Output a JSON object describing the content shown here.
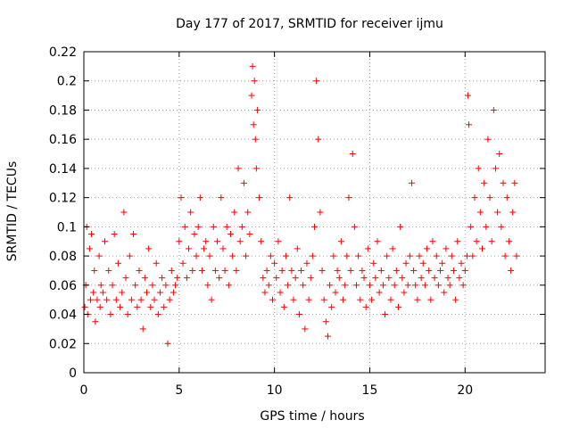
{
  "chart_data": {
    "type": "scatter",
    "title": "Day 177 of 2017, SRMTID for receiver ijmu",
    "xlabel": "GPS time / hours",
    "ylabel": "SRMTID / TECUs",
    "xlim": [
      0,
      24.2
    ],
    "ylim": [
      0,
      0.22
    ],
    "xticks": [
      0,
      5,
      10,
      15,
      20
    ],
    "yticks": [
      0,
      0.02,
      0.04,
      0.06,
      0.08,
      0.1,
      0.12,
      0.14,
      0.16,
      0.18,
      0.2,
      0.22
    ],
    "xtick_labels": [
      "0",
      "5",
      "10",
      "15",
      "20"
    ],
    "ytick_labels": [
      "0",
      "0.02",
      "0.04",
      "0.06",
      "0.08",
      "0.1",
      "0.12",
      "0.14",
      "0.16",
      "0.18",
      "0.2",
      "0.22"
    ],
    "grid": true,
    "marker": "plus",
    "color": "#ff0000",
    "series": [
      {
        "x": [
          0.05,
          0.1,
          0.15,
          0.2,
          0.3,
          0.35,
          0.4,
          0.5,
          0.55,
          0.6,
          0.7,
          0.8,
          0.85,
          0.9,
          1.0,
          1.1,
          1.2,
          1.3,
          1.4,
          1.5,
          1.6,
          1.7,
          1.8,
          1.9,
          2.0,
          2.1,
          2.2,
          2.3,
          2.4,
          2.5,
          2.6,
          2.7,
          2.8,
          2.9,
          3.0,
          3.1,
          3.2,
          3.3,
          3.4,
          3.5,
          3.6,
          3.7,
          3.8,
          3.9,
          4.0,
          4.1,
          4.2,
          4.3,
          4.4,
          4.5,
          4.6,
          4.7,
          4.8,
          4.9,
          5.0,
          5.1,
          5.2,
          5.3,
          5.4,
          5.5,
          5.6,
          5.7,
          5.8,
          5.9,
          6.0,
          6.1,
          6.2,
          6.3,
          6.4,
          6.5,
          6.6,
          6.7,
          6.8,
          6.9,
          7.0,
          7.1,
          7.2,
          7.3,
          7.4,
          7.5,
          7.6,
          7.7,
          7.8,
          7.9,
          8.0,
          8.1,
          8.2,
          8.3,
          8.4,
          8.5,
          8.6,
          8.7,
          8.8,
          8.85,
          8.9,
          8.95,
          9.0,
          9.05,
          9.1,
          9.2,
          9.3,
          9.4,
          9.5,
          9.6,
          9.7,
          9.8,
          9.9,
          10.0,
          10.1,
          10.2,
          10.3,
          10.4,
          10.5,
          10.6,
          10.7,
          10.8,
          10.9,
          11.0,
          11.1,
          11.2,
          11.3,
          11.4,
          11.5,
          11.6,
          11.7,
          11.8,
          11.9,
          12.0,
          12.1,
          12.2,
          12.3,
          12.4,
          12.5,
          12.6,
          12.7,
          12.8,
          12.9,
          13.0,
          13.1,
          13.2,
          13.3,
          13.4,
          13.5,
          13.6,
          13.7,
          13.8,
          13.9,
          14.0,
          14.1,
          14.2,
          14.3,
          14.4,
          14.5,
          14.6,
          14.7,
          14.8,
          14.9,
          15.0,
          15.1,
          15.2,
          15.3,
          15.4,
          15.5,
          15.6,
          15.7,
          15.8,
          15.9,
          16.0,
          16.1,
          16.2,
          16.3,
          16.4,
          16.5,
          16.6,
          16.7,
          16.8,
          16.9,
          17.0,
          17.1,
          17.2,
          17.3,
          17.4,
          17.5,
          17.6,
          17.7,
          17.8,
          17.9,
          18.0,
          18.1,
          18.2,
          18.3,
          18.4,
          18.5,
          18.6,
          18.7,
          18.8,
          18.9,
          19.0,
          19.1,
          19.2,
          19.3,
          19.4,
          19.5,
          19.6,
          19.7,
          19.8,
          19.9,
          20.0,
          20.1,
          20.15,
          20.2,
          20.3,
          20.4,
          20.5,
          20.6,
          20.7,
          20.8,
          20.9,
          21.0,
          21.1,
          21.2,
          21.3,
          21.4,
          21.5,
          21.6,
          21.7,
          21.8,
          21.9,
          22.0,
          22.1,
          22.2,
          22.3,
          22.4,
          22.5,
          22.6,
          22.7
        ],
        "y": [
          0.045,
          0.06,
          0.1,
          0.04,
          0.085,
          0.05,
          0.095,
          0.055,
          0.07,
          0.035,
          0.05,
          0.08,
          0.045,
          0.06,
          0.055,
          0.09,
          0.05,
          0.07,
          0.04,
          0.06,
          0.095,
          0.05,
          0.075,
          0.045,
          0.055,
          0.11,
          0.065,
          0.04,
          0.08,
          0.05,
          0.095,
          0.06,
          0.045,
          0.07,
          0.05,
          0.03,
          0.065,
          0.055,
          0.085,
          0.045,
          0.06,
          0.05,
          0.075,
          0.04,
          0.055,
          0.065,
          0.045,
          0.06,
          0.02,
          0.05,
          0.07,
          0.055,
          0.06,
          0.065,
          0.09,
          0.12,
          0.075,
          0.1,
          0.065,
          0.085,
          0.11,
          0.07,
          0.095,
          0.08,
          0.1,
          0.12,
          0.07,
          0.085,
          0.09,
          0.06,
          0.08,
          0.05,
          0.1,
          0.07,
          0.09,
          0.065,
          0.12,
          0.085,
          0.07,
          0.1,
          0.06,
          0.095,
          0.08,
          0.11,
          0.07,
          0.14,
          0.09,
          0.1,
          0.13,
          0.08,
          0.11,
          0.095,
          0.19,
          0.21,
          0.17,
          0.2,
          0.16,
          0.14,
          0.18,
          0.12,
          0.09,
          0.065,
          0.055,
          0.07,
          0.06,
          0.08,
          0.05,
          0.075,
          0.065,
          0.09,
          0.055,
          0.07,
          0.045,
          0.08,
          0.06,
          0.12,
          0.07,
          0.05,
          0.065,
          0.085,
          0.04,
          0.07,
          0.06,
          0.03,
          0.075,
          0.05,
          0.065,
          0.08,
          0.1,
          0.2,
          0.16,
          0.11,
          0.07,
          0.05,
          0.035,
          0.025,
          0.06,
          0.045,
          0.08,
          0.055,
          0.07,
          0.065,
          0.09,
          0.05,
          0.06,
          0.08,
          0.12,
          0.07,
          0.15,
          0.1,
          0.06,
          0.08,
          0.05,
          0.07,
          0.065,
          0.045,
          0.085,
          0.06,
          0.05,
          0.075,
          0.065,
          0.09,
          0.055,
          0.07,
          0.06,
          0.04,
          0.08,
          0.065,
          0.05,
          0.085,
          0.06,
          0.07,
          0.045,
          0.1,
          0.065,
          0.055,
          0.075,
          0.06,
          0.08,
          0.13,
          0.07,
          0.06,
          0.05,
          0.08,
          0.065,
          0.075,
          0.06,
          0.085,
          0.07,
          0.05,
          0.09,
          0.065,
          0.08,
          0.06,
          0.07,
          0.075,
          0.055,
          0.085,
          0.065,
          0.06,
          0.08,
          0.07,
          0.05,
          0.09,
          0.065,
          0.075,
          0.06,
          0.07,
          0.08,
          0.19,
          0.17,
          0.1,
          0.08,
          0.12,
          0.09,
          0.14,
          0.11,
          0.085,
          0.13,
          0.1,
          0.16,
          0.12,
          0.09,
          0.18,
          0.14,
          0.11,
          0.15,
          0.1,
          0.13,
          0.08,
          0.12,
          0.09,
          0.07,
          0.11,
          0.13,
          0.08
        ]
      }
    ]
  }
}
